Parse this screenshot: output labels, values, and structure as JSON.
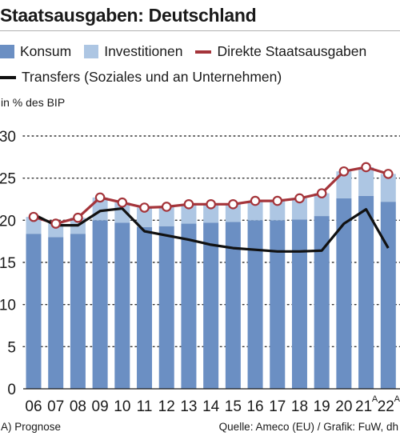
{
  "title": "Staatsausgaben: Deutschland",
  "legend": {
    "konsum": "Konsum",
    "investitionen": "Investitionen",
    "direkte": "Direkte Staatsausgaben",
    "transfers": "Transfers (Soziales und an Unternehmen)"
  },
  "unit_label": "in % des BIP",
  "footnote": "A) Prognose",
  "source": "Quelle: Ameco (EU) / Grafik: FuW, dh",
  "colors": {
    "konsum": "#6b8fc3",
    "investitionen": "#adc6e3",
    "direkte": "#a4343a",
    "transfers": "#111111",
    "grid": "#333333"
  },
  "chart_data": {
    "type": "bar",
    "categories": [
      "06",
      "07",
      "08",
      "09",
      "10",
      "11",
      "12",
      "13",
      "14",
      "15",
      "16",
      "17",
      "18",
      "19",
      "20",
      "21",
      "22"
    ],
    "category_superscripts": [
      "",
      "",
      "",
      "",
      "",
      "",
      "",
      "",
      "",
      "",
      "",
      "",
      "",
      "",
      "",
      "A",
      "A"
    ],
    "ylim": [
      0,
      30
    ],
    "yticks": [
      0,
      5,
      10,
      15,
      20,
      25,
      30
    ],
    "grid": true,
    "stacked_bars": [
      {
        "name": "Konsum",
        "values": [
          18.4,
          18.0,
          18.4,
          20.0,
          19.7,
          19.2,
          19.3,
          19.6,
          19.7,
          19.8,
          20.0,
          20.0,
          20.1,
          20.5,
          22.6,
          22.9,
          22.2
        ]
      },
      {
        "name": "Investitionen",
        "values": [
          2.0,
          1.6,
          1.9,
          2.7,
          2.4,
          2.3,
          2.3,
          2.3,
          2.2,
          2.1,
          2.3,
          2.3,
          2.5,
          2.7,
          3.2,
          3.4,
          3.3
        ]
      }
    ],
    "lines": [
      {
        "name": "Direkte Staatsausgaben",
        "values": [
          20.4,
          19.6,
          20.3,
          22.7,
          22.1,
          21.5,
          21.6,
          21.9,
          21.9,
          21.9,
          22.3,
          22.3,
          22.6,
          23.2,
          25.8,
          26.3,
          25.5
        ]
      },
      {
        "name": "Transfers (Soziales und an Unternehmen)",
        "values": [
          20.7,
          19.4,
          19.4,
          21.1,
          21.4,
          18.7,
          18.2,
          17.7,
          17.1,
          16.7,
          16.5,
          16.3,
          16.3,
          16.4,
          19.6,
          21.3,
          16.7
        ]
      }
    ]
  }
}
